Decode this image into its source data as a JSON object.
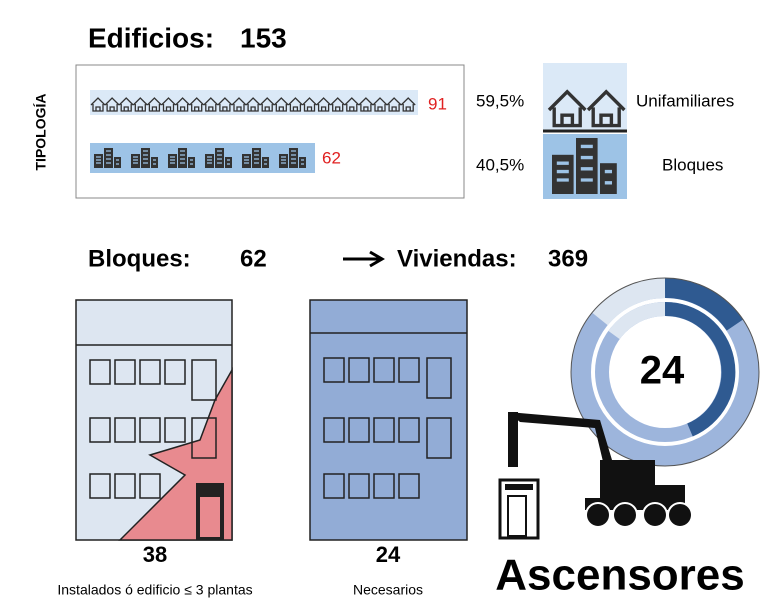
{
  "header": {
    "label": "Edificios:",
    "value": "153"
  },
  "side_label": "TIPOLOGÍA",
  "typology": [
    {
      "count": "91",
      "percent": "59,5%",
      "label": "Unifamiliares"
    },
    {
      "count": "62",
      "percent": "40,5%",
      "label": "Bloques"
    }
  ],
  "blocks": {
    "label": "Bloques:",
    "value": "62"
  },
  "dwellings": {
    "label": "Viviendas:",
    "value": "369"
  },
  "buildings": [
    {
      "value": "38",
      "caption": "Instalados ó edificio ≤ 3 plantas"
    },
    {
      "value": "24",
      "caption": "Necesarios"
    }
  ],
  "donut_value": "24",
  "footer": "Ascensores"
}
